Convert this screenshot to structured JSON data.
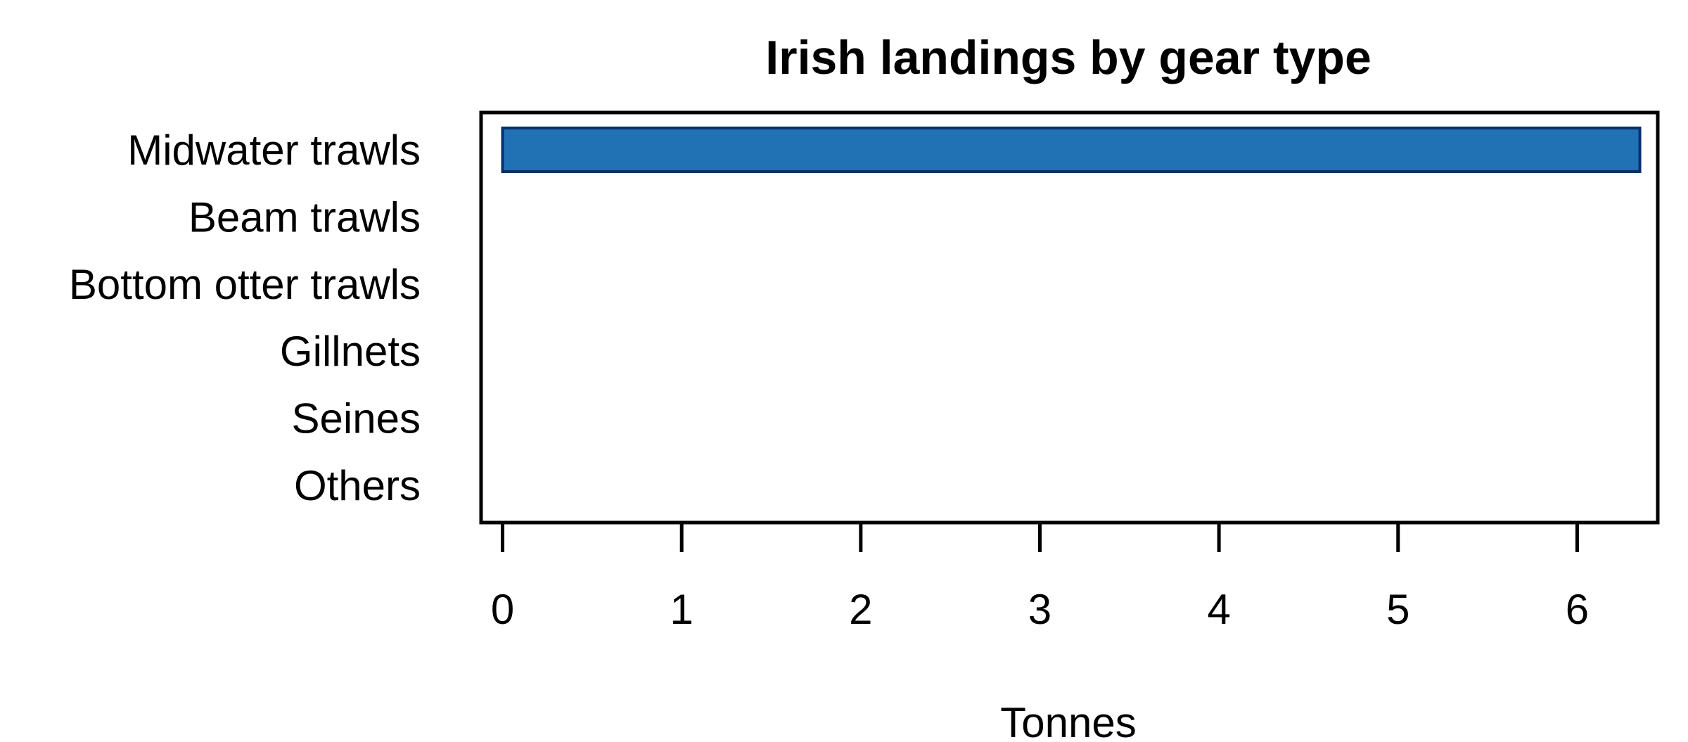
{
  "chart_data": {
    "type": "bar",
    "orientation": "horizontal",
    "title": "Irish landings by gear type",
    "xlabel": "Tonnes",
    "ylabel": "",
    "categories": [
      "Midwater trawls",
      "Beam trawls",
      "Bottom otter trawls",
      "Gillnets",
      "Seines",
      "Others"
    ],
    "values": [
      6.35,
      0,
      0,
      0,
      0,
      0
    ],
    "xlim": [
      -0.12,
      6.45
    ],
    "xticks": [
      0,
      1,
      2,
      3,
      4,
      5,
      6
    ],
    "grid": false,
    "legend": "none",
    "colors": {
      "bar_fill": "#2171b5",
      "bar_stroke": "#08306b",
      "axis": "#000000"
    }
  }
}
